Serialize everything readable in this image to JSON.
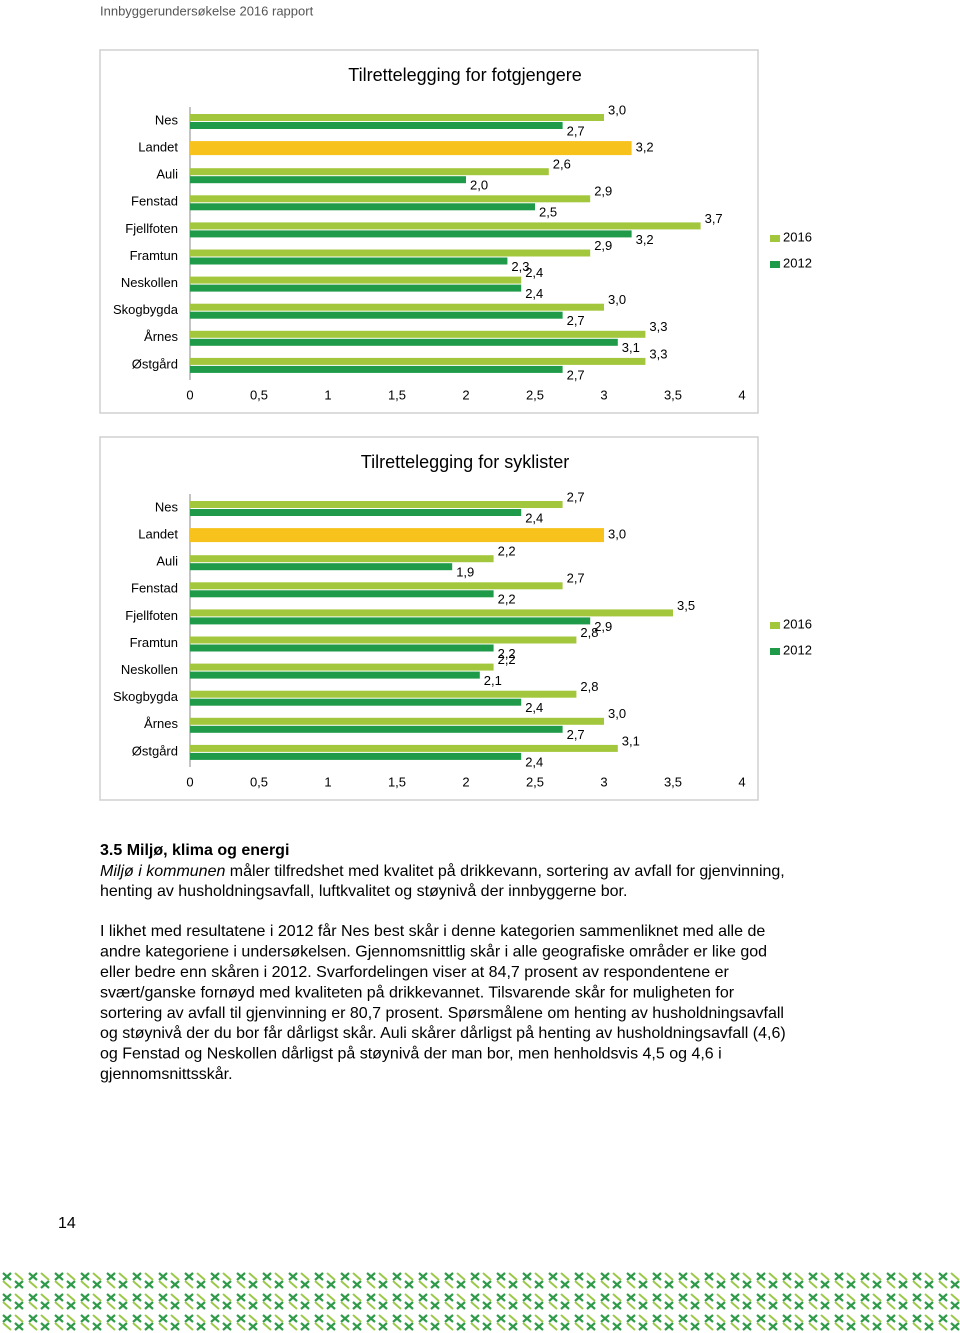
{
  "header": {
    "title": "Innbyggerundersøkelse 2016 rapport"
  },
  "chart_data": [
    {
      "type": "bar",
      "orientation": "horizontal",
      "title": "Tilrettelegging for fotgjengere",
      "categories": [
        "Nes",
        "Landet",
        "Auli",
        "Fenstad",
        "Fjellfoten",
        "Framtun",
        "Neskollen",
        "Skogbygda",
        "Årnes",
        "Østgård"
      ],
      "series": [
        {
          "name": "2016",
          "color": "#a3c73c",
          "colors": [
            "#a3c73c",
            "#f7c21c",
            "#a3c73c",
            "#a3c73c",
            "#a3c73c",
            "#a3c73c",
            "#a3c73c",
            "#a3c73c",
            "#a3c73c",
            "#a3c73c"
          ],
          "values": [
            3.0,
            3.2,
            2.6,
            2.9,
            3.7,
            2.9,
            2.4,
            3.0,
            3.3,
            3.3
          ],
          "value_labels": [
            "3,0",
            "3,2",
            "2,6",
            "2,9",
            "3,7",
            "2,9",
            "2,4",
            "3,0",
            "3,3",
            "3,3"
          ]
        },
        {
          "name": "2012",
          "color": "#1f9a48",
          "values": [
            2.7,
            null,
            2.0,
            2.5,
            3.2,
            2.3,
            2.4,
            2.7,
            3.1,
            2.7
          ],
          "value_labels": [
            "2,7",
            null,
            "2,0",
            "2,5",
            "3,2",
            "2,3",
            "2,4",
            "2,7",
            "3,1",
            "2,7"
          ]
        }
      ],
      "xlim": [
        0,
        4
      ],
      "xticks": [
        0,
        {
          "value": 0.5,
          "label": "0,5"
        },
        1,
        {
          "value": 1.5,
          "label": "1,5"
        },
        2,
        {
          "value": 2.5,
          "label": "2,5"
        },
        3,
        {
          "value": 3.5,
          "label": "3,5"
        },
        4
      ],
      "grid": false,
      "legend": "right"
    },
    {
      "type": "bar",
      "orientation": "horizontal",
      "title": "Tilrettelegging for syklister",
      "categories": [
        "Nes",
        "Landet",
        "Auli",
        "Fenstad",
        "Fjellfoten",
        "Framtun",
        "Neskollen",
        "Skogbygda",
        "Årnes",
        "Østgård"
      ],
      "series": [
        {
          "name": "2016",
          "color": "#a3c73c",
          "colors": [
            "#a3c73c",
            "#f7c21c",
            "#a3c73c",
            "#a3c73c",
            "#a3c73c",
            "#a3c73c",
            "#a3c73c",
            "#a3c73c",
            "#a3c73c",
            "#a3c73c"
          ],
          "values": [
            2.7,
            3.0,
            2.2,
            2.7,
            3.5,
            2.8,
            2.2,
            2.8,
            3.0,
            3.1
          ],
          "value_labels": [
            "2,7",
            "3,0",
            "2,2",
            "2,7",
            "3,5",
            "2,8",
            "2,2",
            "2,8",
            "3,0",
            "3,1"
          ]
        },
        {
          "name": "2012",
          "color": "#1f9a48",
          "values": [
            2.4,
            null,
            1.9,
            2.2,
            2.9,
            2.2,
            2.1,
            2.4,
            2.7,
            2.4
          ],
          "value_labels": [
            "2,4",
            null,
            "1,9",
            "2,2",
            "2,9",
            "2,2",
            "2,1",
            "2,4",
            "2,7",
            "2,4"
          ]
        }
      ],
      "xlim": [
        0,
        4
      ],
      "xticks": [
        0,
        {
          "value": 0.5,
          "label": "0,5"
        },
        1,
        {
          "value": 1.5,
          "label": "1,5"
        },
        2,
        {
          "value": 2.5,
          "label": "2,5"
        },
        3,
        {
          "value": 3.5,
          "label": "3,5"
        },
        4
      ],
      "grid": false,
      "legend": "right"
    }
  ],
  "section": {
    "heading": "3.5 Miljø, klima og energi",
    "intro": {
      "emphasis": "Miljø i kommunen",
      "lines": [
        " måler tilfredshet med kvalitet på drikkevann, sortering av avfall for gjenvinning,",
        "henting av husholdningsavfall, luftkvalitet og støynivå der innbyggerne bor."
      ]
    },
    "body": [
      "I likhet med resultatene i 2012 får Nes best skår i denne kategorien sammenliknet med alle de",
      "andre kategoriene i undersøkelsen. Gjennomsnittlig skår i alle geografiske områder er like god",
      "eller bedre enn skåren i 2012. Svarfordelingen viser at 84,7 prosent av respondentene er",
      "svært/ganske fornøyd med kvaliteten på drikkevannet. Tilsvarende skår for muligheten for",
      "sortering av avfall til gjenvinning er 80,7 prosent. Spørsmålene om henting av husholdningsavfall",
      "og støynivå der du bor får dårligst skår. Auli skårer dårligst på henting av husholdningsavfall (4,6)",
      "og Fenstad og Neskollen dårligst på støynivå der man bor, men henholdsvis 4,5 og 4,6 i",
      "gjennomsnittsskår."
    ]
  },
  "page_number": "14"
}
